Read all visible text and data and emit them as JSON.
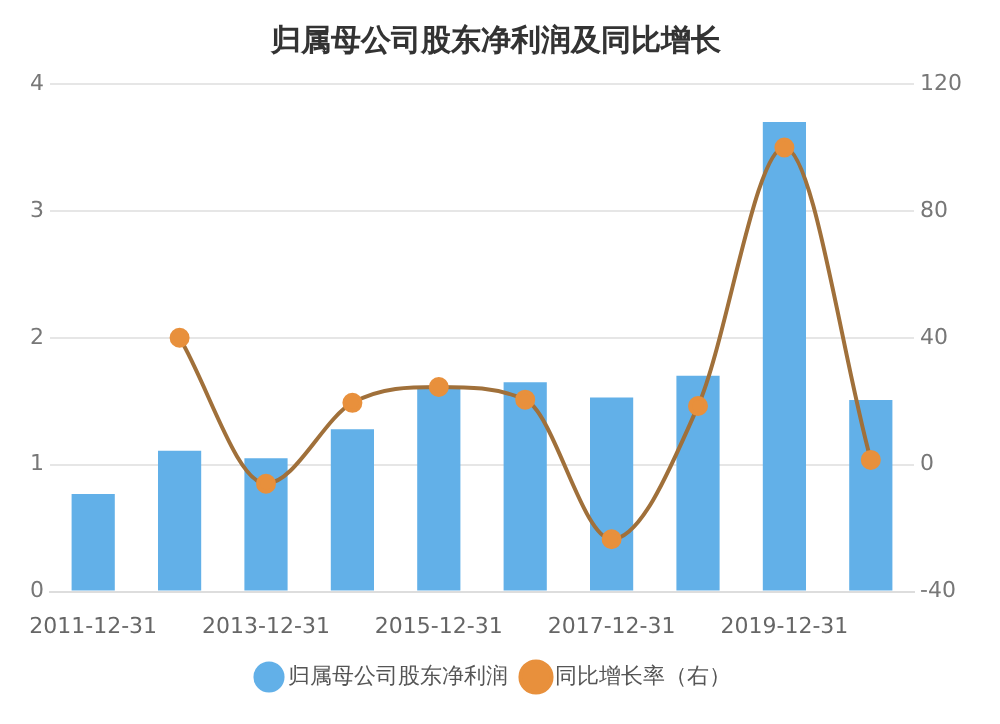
{
  "chart_data": {
    "type": "bar",
    "title": "归属母公司股东净利润及同比增长",
    "categories": [
      "2011-12-31",
      null,
      "2013-12-31",
      null,
      "2015-12-31",
      null,
      "2017-12-31",
      null,
      "2019-12-31",
      null
    ],
    "series": [
      {
        "name": "归属母公司股东净利润",
        "color": "#62b0e8",
        "values": [
          0.77,
          1.11,
          1.05,
          1.28,
          1.62,
          1.65,
          1.53,
          1.7,
          3.7,
          1.51
        ]
      },
      {
        "name": "同比增长率（右）",
        "type": "line",
        "axis": "y2",
        "color": "#a0703a",
        "values": [
          null,
          40,
          -6,
          19.5,
          24.5,
          20.5,
          -23.5,
          18.5,
          100,
          1.5
        ]
      }
    ],
    "ylim": [
      0,
      4
    ],
    "yticks": [
      0,
      1,
      2,
      3,
      4
    ],
    "y2lim": [
      -40,
      120
    ],
    "y2ticks": [
      -40,
      0,
      40,
      80,
      120
    ],
    "grid": "y",
    "legend": "bottom",
    "marker": "circle",
    "line_style": "solid"
  }
}
